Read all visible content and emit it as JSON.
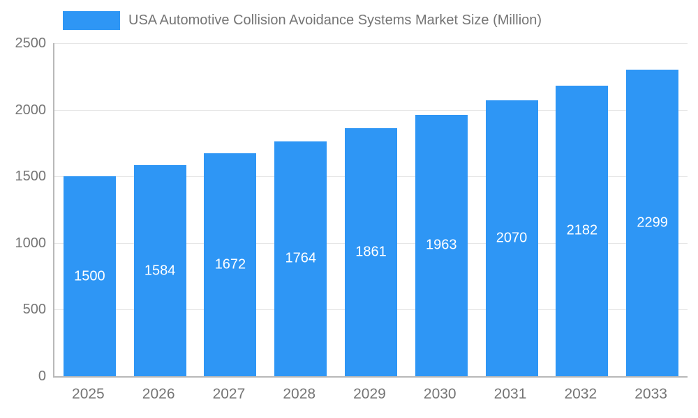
{
  "title": "USA Automotive Collision Avoidance Systems Market Size (Million)",
  "colors": {
    "bar": "#2E96F5",
    "axis_text": "#757575",
    "grid": "#e6e6e6",
    "axis_line": "#b8b8b8",
    "value_label": "#ffffff",
    "background": "#ffffff"
  },
  "chart_data": {
    "type": "bar",
    "categories": [
      "2025",
      "2026",
      "2027",
      "2028",
      "2029",
      "2030",
      "2031",
      "2032",
      "2033"
    ],
    "values": [
      1500,
      1584,
      1672,
      1764,
      1861,
      1963,
      2070,
      2182,
      2299
    ],
    "title": "USA Automotive Collision Avoidance Systems Market Size (Million)",
    "xlabel": "",
    "ylabel": "",
    "ylim": [
      0,
      2500
    ],
    "yticks": [
      0,
      500,
      1000,
      1500,
      2000,
      2500
    ],
    "grid": true,
    "legend_position": "top-left",
    "value_labels": "inside-center"
  }
}
